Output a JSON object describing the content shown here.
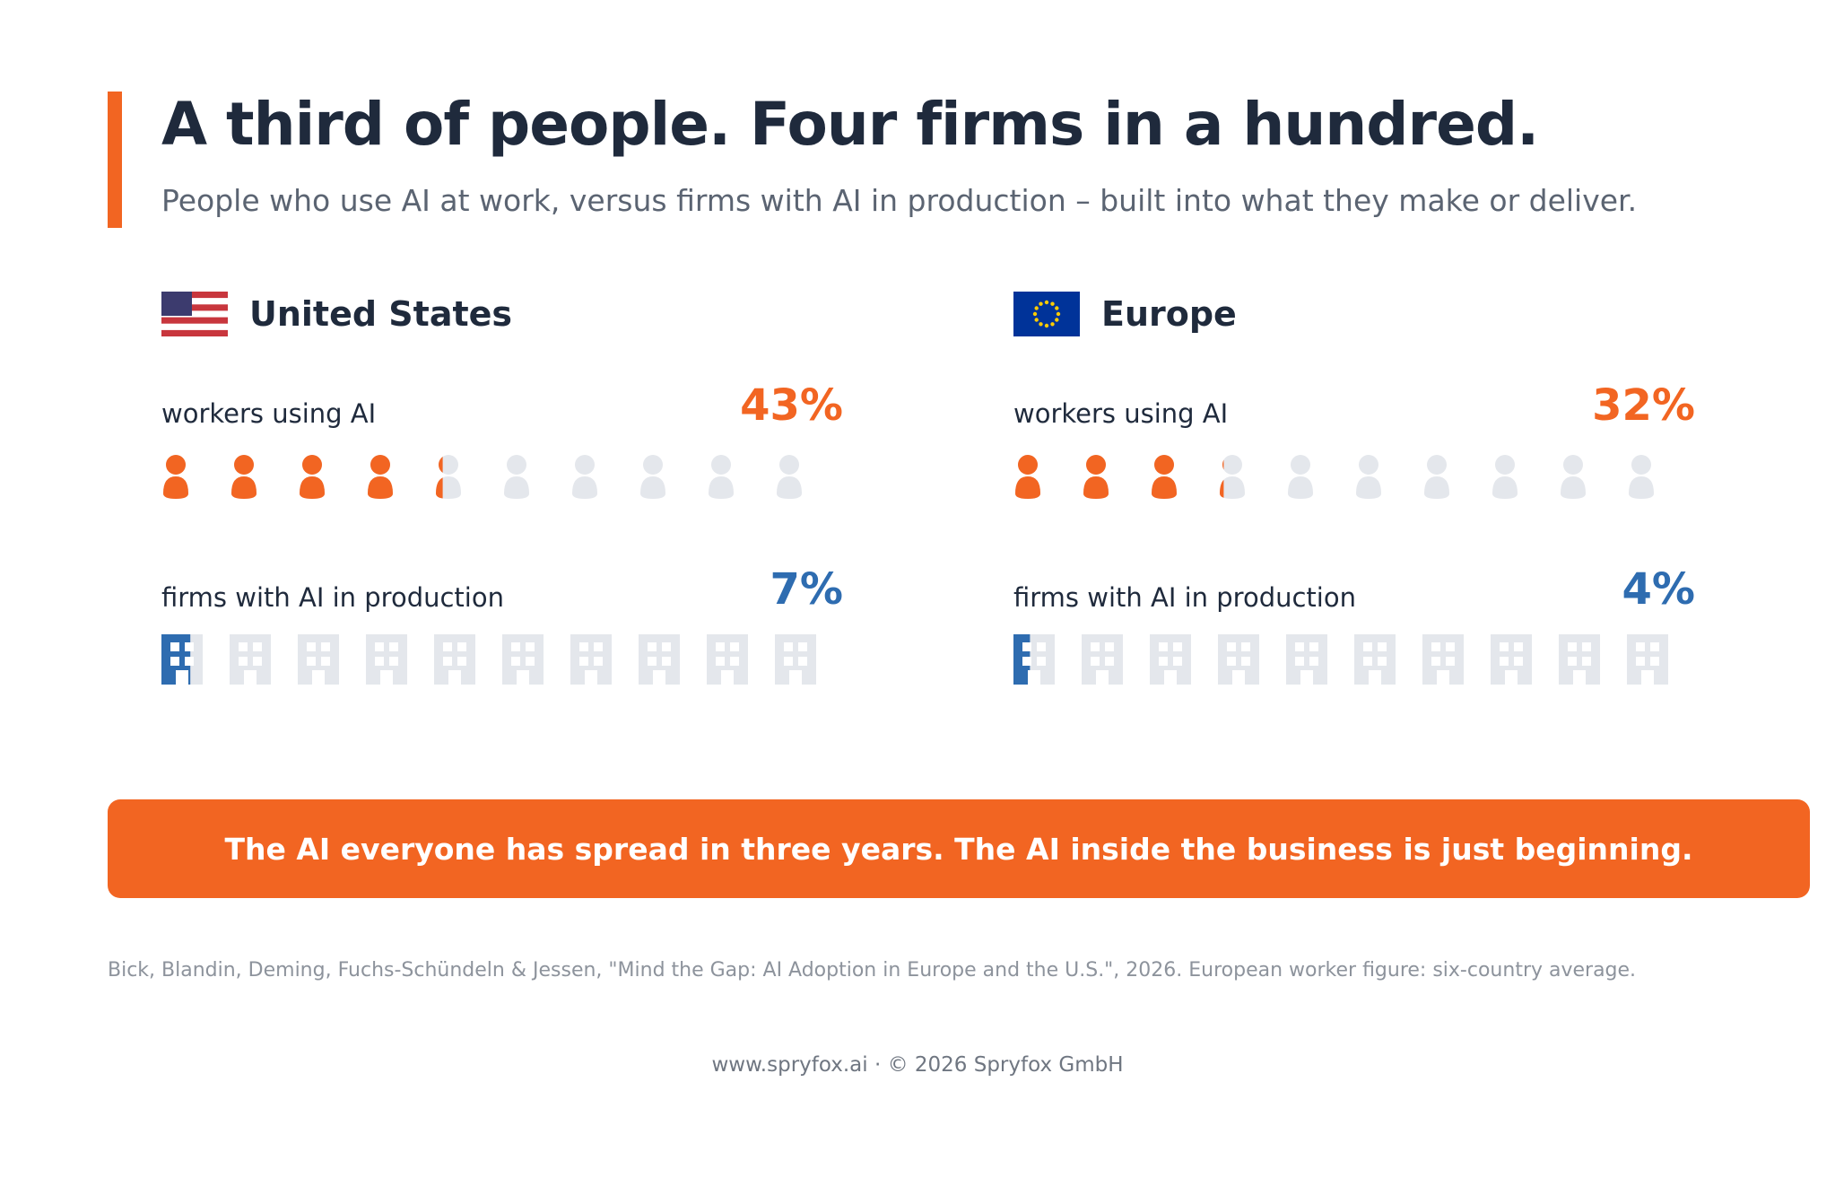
{
  "header": {
    "title": "A third of people. Four firms in a hundred.",
    "subtitle": "People who use AI at work, versus firms with AI in production – built into what they make or deliver."
  },
  "colors": {
    "accent": "#f26522",
    "blue": "#2e6cb0",
    "inactive_icon": "#e4e7ec",
    "text_dark": "#1f2a3c"
  },
  "panels": [
    {
      "name": "United States",
      "flag": "us-flag-icon",
      "workers_label": "workers using AI",
      "workers_value": "43%",
      "firms_label": "firms with AI in production",
      "firms_value": "7%"
    },
    {
      "name": "Europe",
      "flag": "eu-flag-icon",
      "workers_label": "workers using AI",
      "workers_value": "32%",
      "firms_label": "firms with AI in production",
      "firms_value": "4%"
    }
  ],
  "chart_data": [
    {
      "type": "bar",
      "title": "United States",
      "categories": [
        "workers using AI",
        "firms with AI in production"
      ],
      "values": [
        43,
        7
      ],
      "unit": "%",
      "icon_count": 10,
      "icons": [
        "person-icon",
        "building-icon"
      ]
    },
    {
      "type": "bar",
      "title": "Europe",
      "categories": [
        "workers using AI",
        "firms with AI in production"
      ],
      "values": [
        32,
        4
      ],
      "unit": "%",
      "icon_count": 10,
      "icons": [
        "person-icon",
        "building-icon"
      ]
    }
  ],
  "banner": {
    "text": "The AI everyone has spread in three years. The AI inside the business is just beginning."
  },
  "source": {
    "text": "Bick, Blandin, Deming, Fuchs-Schündeln & Jessen, \"Mind the Gap: AI Adoption in Europe and the U.S.\", 2026. European worker figure: six-country average."
  },
  "footer": {
    "text": "www.spryfox.ai · © 2026 Spryfox GmbH"
  }
}
